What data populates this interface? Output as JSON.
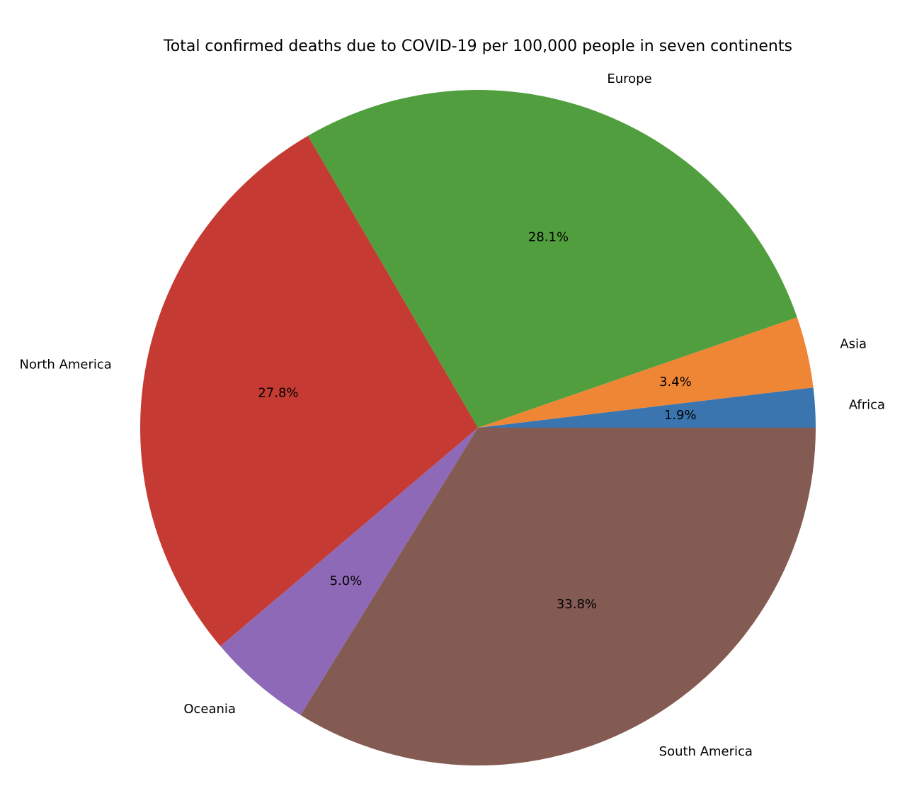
{
  "chart_data": {
    "type": "pie",
    "title": "Total confirmed deaths due to COVID-19 per 100,000 people in seven continents",
    "start_angle_deg": 0,
    "direction": "counterclockwise",
    "slices": [
      {
        "label": "Africa",
        "percent": 1.9,
        "pct_text": "1.9%",
        "color": "#3a75af"
      },
      {
        "label": "Asia",
        "percent": 3.4,
        "pct_text": "3.4%",
        "color": "#ef8636"
      },
      {
        "label": "Europe",
        "percent": 28.1,
        "pct_text": "28.1%",
        "color": "#519e3e"
      },
      {
        "label": "North America",
        "percent": 27.8,
        "pct_text": "27.8%",
        "color": "#c53a32"
      },
      {
        "label": "Oceania",
        "percent": 5.0,
        "pct_text": "5.0%",
        "color": "#8d69b8"
      },
      {
        "label": "South America",
        "percent": 33.8,
        "pct_text": "33.8%",
        "color": "#845b53"
      }
    ]
  }
}
